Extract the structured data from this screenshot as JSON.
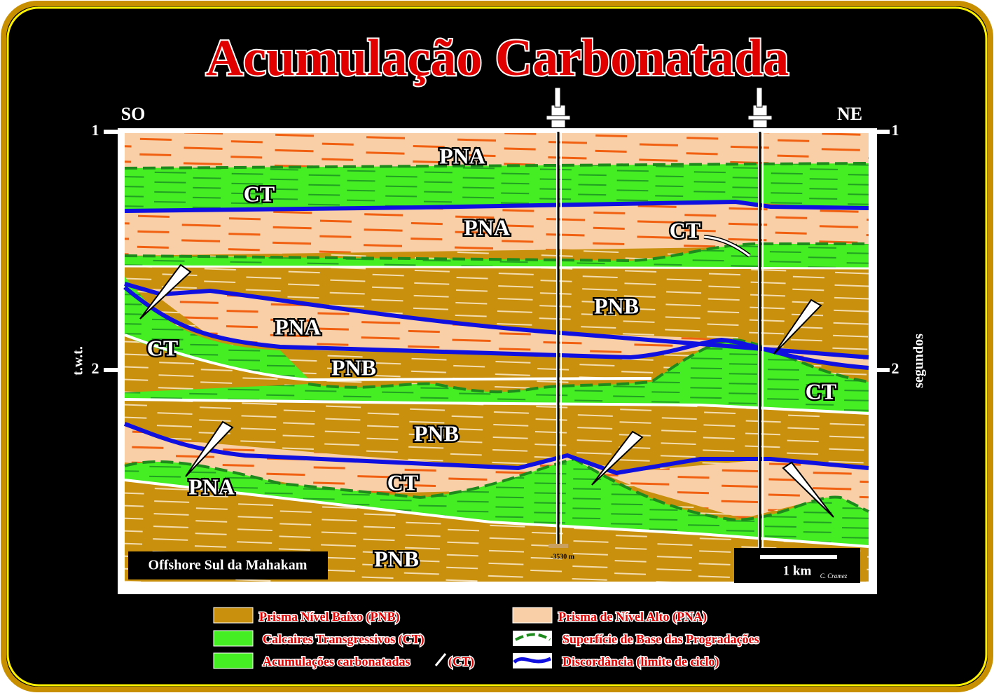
{
  "title": "Acumulação Carbonatada",
  "directions": {
    "left": "SO",
    "right": "NE"
  },
  "axis": {
    "left_label": "t.w.t.",
    "right_label": "segundos",
    "ticks": [
      1,
      2
    ]
  },
  "unit_labels": [
    "PNA",
    "CT",
    "PNA",
    "CT",
    "PNB",
    "PNA",
    "CT",
    "PNB",
    "CT",
    "PNB",
    "CT",
    "PNA",
    "PNB"
  ],
  "location": "Offshore Sul da Mahakam",
  "well_depth": "-3530 m",
  "scale": "1 km",
  "credit": "C. Cramez",
  "legend": {
    "left": [
      "Prisma  Nível Baixo (PNB)",
      "Calcaires Transgressivos  (CT)",
      "Acumulações carbonatadas"
    ],
    "left_suffix": "(CT)",
    "right": [
      "Prisma de Nível Alto (PNA)",
      "Superfície de Base das  Progradações",
      "Discordância (limite de ciclo)"
    ]
  }
}
